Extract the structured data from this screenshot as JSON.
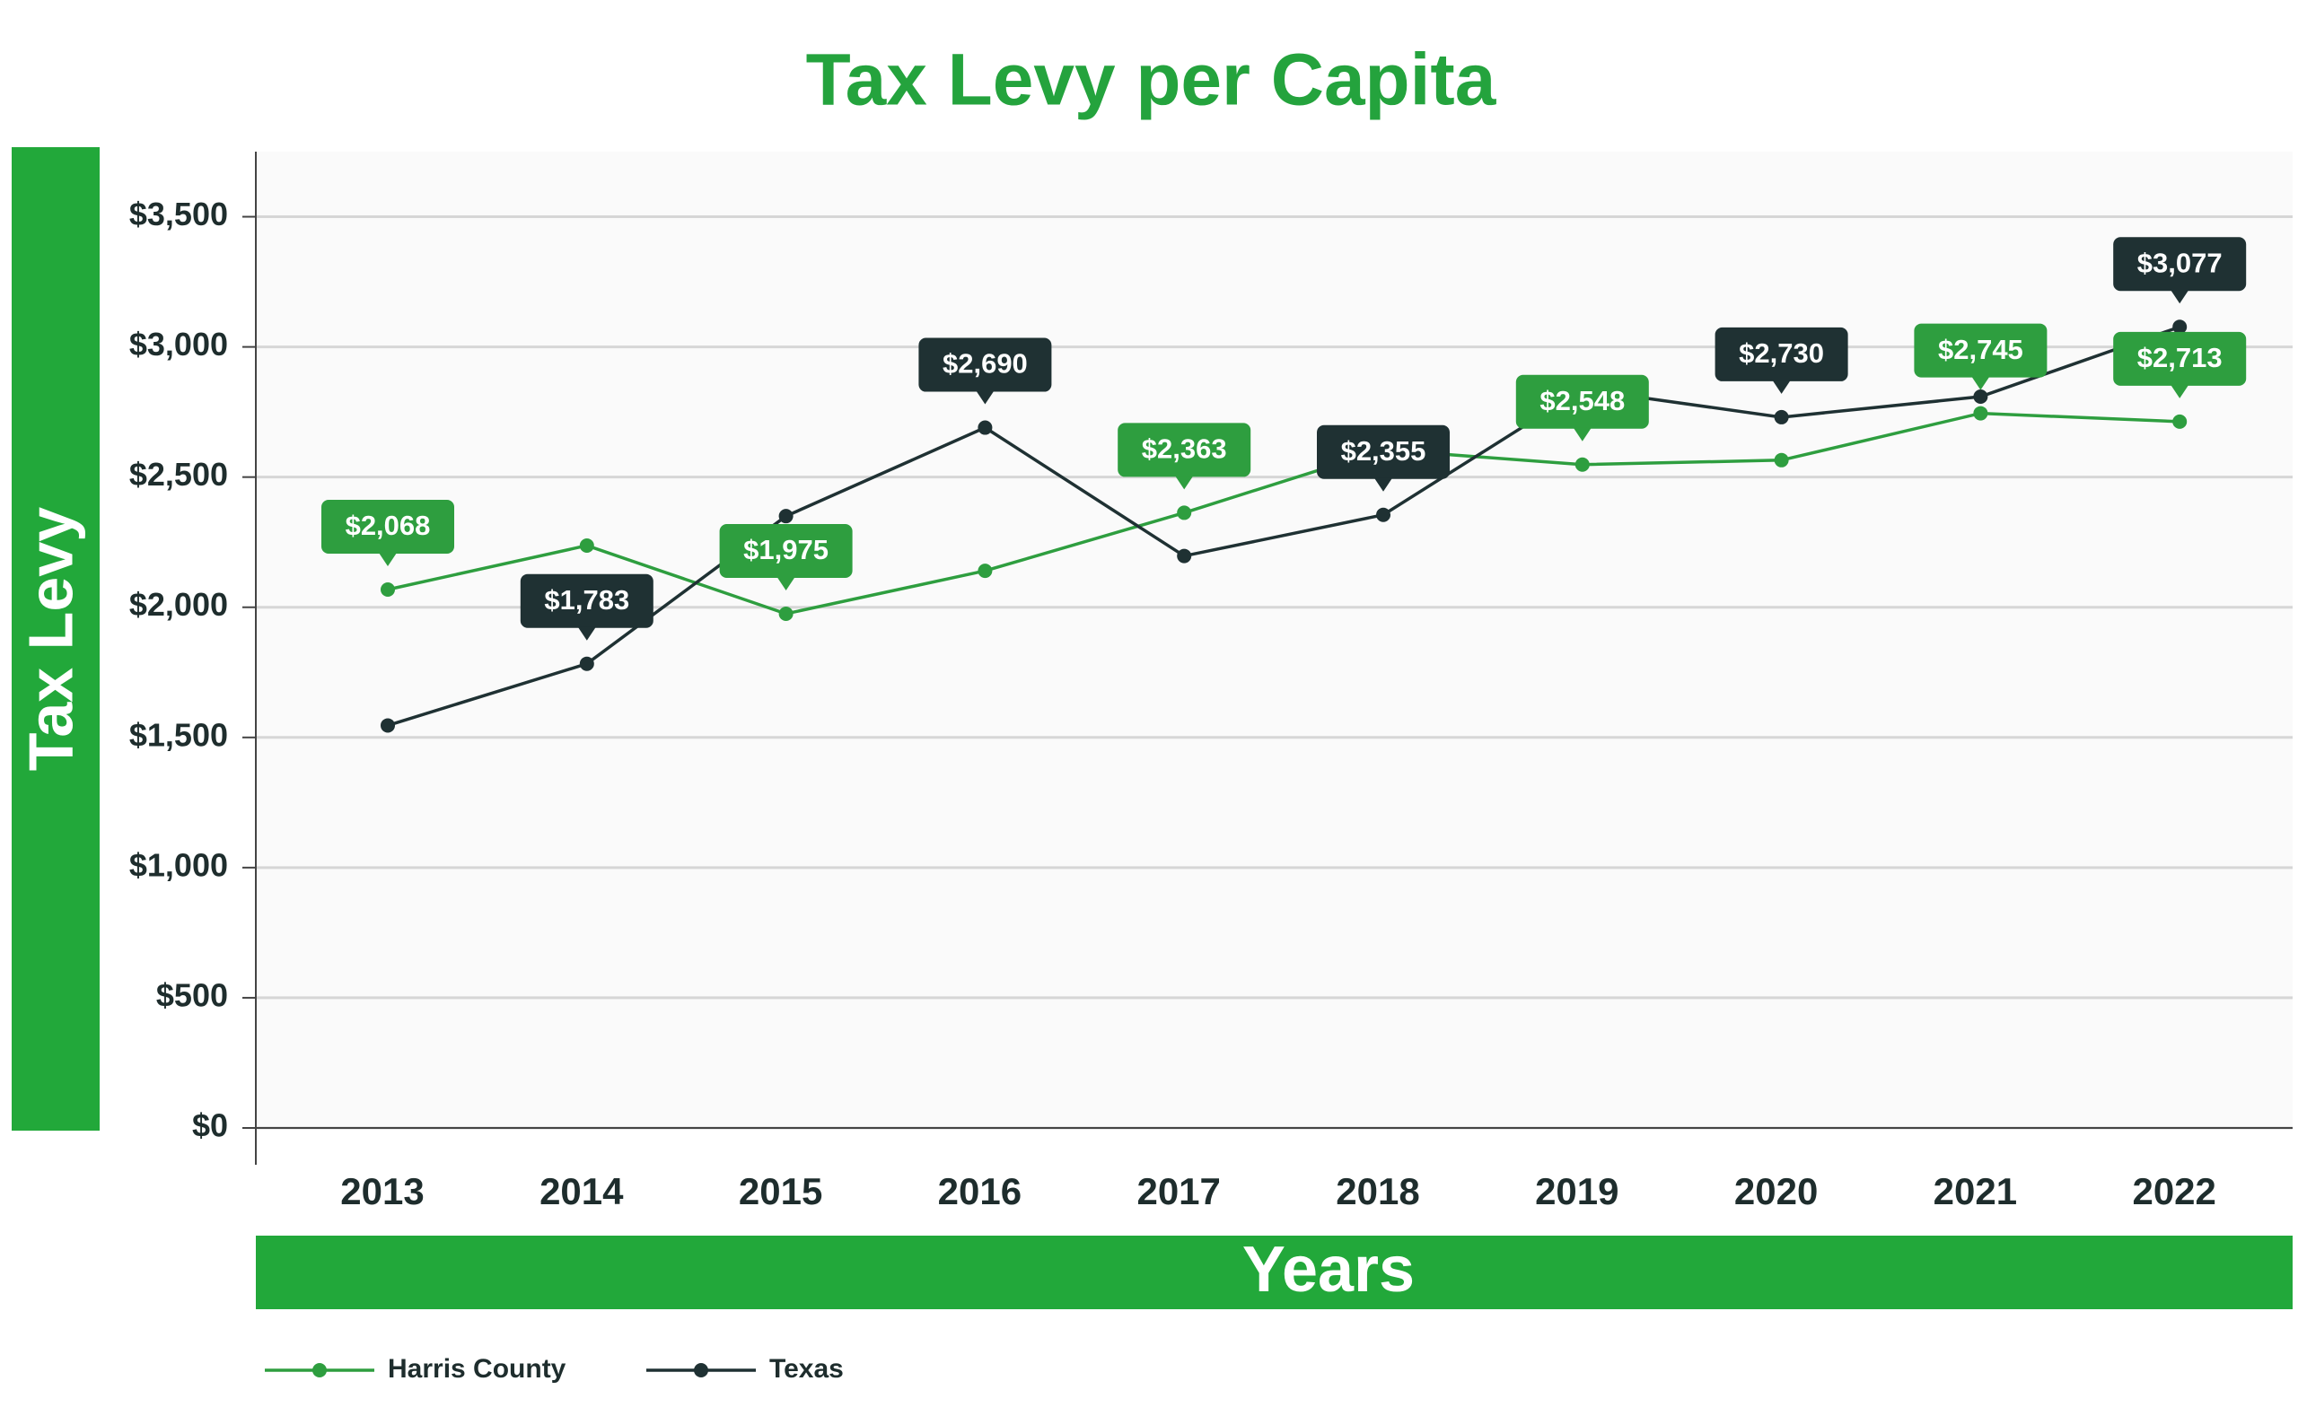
{
  "chart_data": {
    "type": "line",
    "title": "Tax Levy per Capita",
    "y_label": "Tax Levy",
    "x_label": "Years",
    "categories": [
      "2013",
      "2014",
      "2015",
      "2016",
      "2017",
      "2018",
      "2019",
      "2020",
      "2021",
      "2022"
    ],
    "series": [
      {
        "name": "Harris County",
        "color": "#2e9e3f",
        "values": [
          2068,
          2237,
          1975,
          2140,
          2363,
          2605,
          2548,
          2565,
          2745,
          2713
        ],
        "value_labels": [
          "$2,068",
          null,
          "$1,975",
          null,
          "$2,363",
          null,
          "$2,548",
          null,
          "$2,745",
          "$2,713"
        ]
      },
      {
        "name": "Texas",
        "color": "#1f3133",
        "values": [
          1546,
          1783,
          2350,
          2690,
          2197,
          2355,
          2837,
          2730,
          2809,
          3077
        ],
        "value_labels": [
          null,
          "$1,783",
          null,
          "$2,690",
          null,
          "$2,355",
          null,
          "$2,730",
          null,
          "$3,077"
        ]
      }
    ],
    "ylim": [
      0,
      3750
    ],
    "yticks": [
      {
        "value": 0,
        "label": "$0"
      },
      {
        "value": 500,
        "label": "$500"
      },
      {
        "value": 1000,
        "label": "$1,000"
      },
      {
        "value": 1500,
        "label": "$1,500"
      },
      {
        "value": 2000,
        "label": "$2,000"
      },
      {
        "value": 2500,
        "label": "$2,500"
      },
      {
        "value": 3000,
        "label": "$3,000"
      },
      {
        "value": 3500,
        "label": "$3,500"
      }
    ],
    "grid": true,
    "legend": "bottom-left"
  }
}
